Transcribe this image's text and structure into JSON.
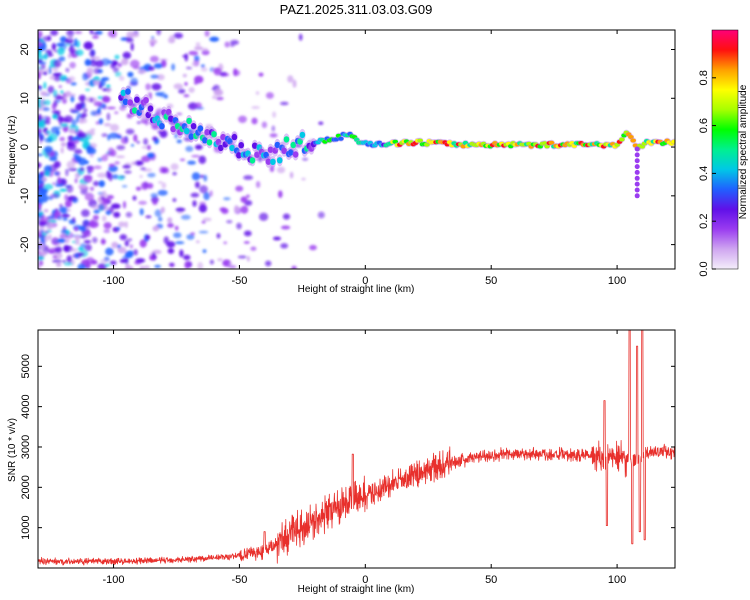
{
  "title": "PAZ1.2025.311.03.03.G09",
  "chart_data": [
    {
      "type": "heatmap",
      "name": "spectrogram",
      "xlabel": "Height of straight line (km)",
      "ylabel": "Frequency (Hz)",
      "xlim": [
        -130,
        123
      ],
      "ylim": [
        -25,
        24
      ],
      "xticks": [
        -100,
        -50,
        0,
        50,
        100
      ],
      "xtick_labels": [
        "-100",
        "-50",
        "0",
        "50",
        "100"
      ],
      "yticks": [
        -20,
        -10,
        0,
        10,
        20
      ],
      "ytick_labels": [
        "-20",
        "-10",
        "0",
        "10",
        "20"
      ],
      "ridge": {
        "x": [
          -95,
          -85,
          -75,
          -65,
          -55,
          -45,
          -38,
          -30,
          -20,
          -10,
          -6,
          -2,
          5,
          20,
          40,
          60,
          80,
          100,
          104,
          108,
          112,
          123
        ],
        "freq": [
          10,
          7,
          5,
          3,
          1,
          -1,
          -2,
          0,
          1,
          2,
          3,
          1,
          0.5,
          1,
          0.5,
          0.5,
          0.5,
          0.5,
          3,
          0,
          1,
          1
        ]
      },
      "colorbar": {
        "label": "Normalized spectral amplitude",
        "range": [
          0,
          1
        ],
        "ticks": [
          0.0,
          0.2,
          0.4,
          0.6,
          0.8
        ],
        "tick_labels": [
          "0.0",
          "0.2",
          "0.4",
          "0.6",
          "0.8"
        ],
        "colors": [
          "#f4eefa",
          "#cfa6f0",
          "#9a3cf0",
          "#6010e8",
          "#2060ff",
          "#00c8e6",
          "#00f090",
          "#00ff00",
          "#a8ff00",
          "#ffff00",
          "#ffa000",
          "#ff1010",
          "#ff0078"
        ]
      }
    },
    {
      "type": "line",
      "name": "snr",
      "xlabel": "Height of straight line (km)",
      "ylabel": "SNR (10 * v/v)",
      "xlim": [
        -130,
        123
      ],
      "ylim": [
        0,
        5900
      ],
      "xticks": [
        -100,
        -50,
        0,
        50,
        100
      ],
      "xtick_labels": [
        "-100",
        "-50",
        "0",
        "50",
        "100"
      ],
      "yticks": [
        1000,
        2000,
        3000,
        4000,
        5000
      ],
      "ytick_labels": [
        "1000",
        "2000",
        "3000",
        "4000",
        "5000"
      ],
      "color": "#e8302c",
      "trend": {
        "x": [
          -130,
          -110,
          -90,
          -70,
          -50,
          -40,
          -30,
          -20,
          -10,
          0,
          10,
          20,
          30,
          40,
          50,
          60,
          70,
          80,
          90,
          95,
          100,
          105,
          108,
          112,
          118,
          123
        ],
        "y": [
          170,
          160,
          170,
          220,
          300,
          420,
          800,
          1200,
          1550,
          1800,
          2050,
          2300,
          2550,
          2700,
          2800,
          2830,
          2830,
          2800,
          2800,
          2780,
          2750,
          2700,
          2700,
          2850,
          2880,
          2900
        ]
      },
      "spikes": [
        {
          "x": -5,
          "y": 2820
        },
        {
          "x": -40,
          "y": 900
        },
        {
          "x": 95,
          "y": 4150
        },
        {
          "x": 96,
          "y": 1050
        },
        {
          "x": 105,
          "y": 5900
        },
        {
          "x": 106,
          "y": 600
        },
        {
          "x": 108,
          "y": 5500
        },
        {
          "x": 109,
          "y": 900
        },
        {
          "x": 110,
          "y": 5900
        },
        {
          "x": 111,
          "y": 700
        }
      ]
    }
  ]
}
